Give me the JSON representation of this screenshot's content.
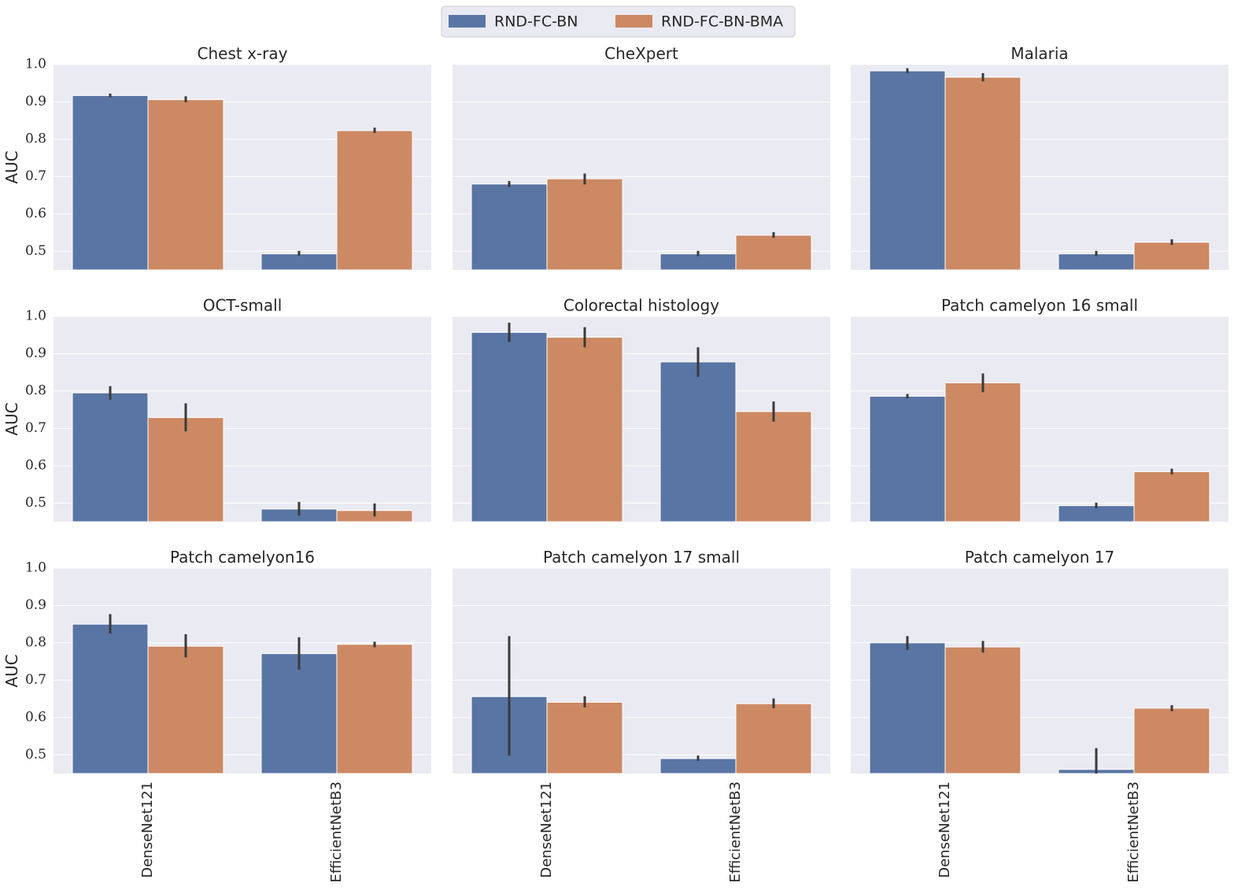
{
  "chart_data": {
    "type": "bar",
    "ylabel": "AUC",
    "ylim": [
      0.45,
      1.0
    ],
    "yticks": [
      0.5,
      0.6,
      0.7,
      0.8,
      0.9,
      1.0
    ],
    "categories": [
      "DenseNet121",
      "EfficientNetB3"
    ],
    "legend": {
      "position": "top-center",
      "entries": [
        {
          "name": "RND-FC-BN",
          "color": "#5975a4"
        },
        {
          "name": "RND-FC-BN-BMA",
          "color": "#cc8963"
        }
      ]
    },
    "colors": {
      "series_0": "#5975a4",
      "series_1": "#cc8963",
      "panel_background": "#eaeaf2",
      "error_bar": "#3a3a3a"
    },
    "panels": [
      {
        "title": "Chest x-ray",
        "series": [
          {
            "name": "RND-FC-BN",
            "values": [
              0.917,
              0.493
            ],
            "err_low": [
              0.912,
              0.488
            ],
            "err_high": [
              0.922,
              0.501
            ]
          },
          {
            "name": "RND-FC-BN-BMA",
            "values": [
              0.906,
              0.823
            ],
            "err_low": [
              0.899,
              0.817
            ],
            "err_high": [
              0.915,
              0.831
            ]
          }
        ]
      },
      {
        "title": "CheXpert",
        "series": [
          {
            "name": "RND-FC-BN",
            "values": [
              0.68,
              0.493
            ],
            "err_low": [
              0.672,
              0.487
            ],
            "err_high": [
              0.688,
              0.501
            ]
          },
          {
            "name": "RND-FC-BN-BMA",
            "values": [
              0.694,
              0.543
            ],
            "err_low": [
              0.679,
              0.536
            ],
            "err_high": [
              0.708,
              0.551
            ]
          }
        ]
      },
      {
        "title": "Malaria",
        "series": [
          {
            "name": "RND-FC-BN",
            "values": [
              0.983,
              0.493
            ],
            "err_low": [
              0.977,
              0.487
            ],
            "err_high": [
              0.99,
              0.501
            ]
          },
          {
            "name": "RND-FC-BN-BMA",
            "values": [
              0.966,
              0.524
            ],
            "err_low": [
              0.955,
              0.517
            ],
            "err_high": [
              0.977,
              0.532
            ]
          }
        ]
      },
      {
        "title": "OCT-small",
        "series": [
          {
            "name": "RND-FC-BN",
            "values": [
              0.795,
              0.484
            ],
            "err_low": [
              0.777,
              0.466
            ],
            "err_high": [
              0.813,
              0.503
            ]
          },
          {
            "name": "RND-FC-BN-BMA",
            "values": [
              0.729,
              0.48
            ],
            "err_low": [
              0.692,
              0.464
            ],
            "err_high": [
              0.767,
              0.499
            ]
          }
        ]
      },
      {
        "title": "Colorectal histology",
        "series": [
          {
            "name": "RND-FC-BN",
            "values": [
              0.957,
              0.878
            ],
            "err_low": [
              0.931,
              0.838
            ],
            "err_high": [
              0.983,
              0.917
            ]
          },
          {
            "name": "RND-FC-BN-BMA",
            "values": [
              0.944,
              0.745
            ],
            "err_low": [
              0.917,
              0.718
            ],
            "err_high": [
              0.971,
              0.772
            ]
          }
        ]
      },
      {
        "title": "Patch camelyon 16 small",
        "series": [
          {
            "name": "RND-FC-BN",
            "values": [
              0.786,
              0.493
            ],
            "err_low": [
              0.781,
              0.486
            ],
            "err_high": [
              0.792,
              0.501
            ]
          },
          {
            "name": "RND-FC-BN-BMA",
            "values": [
              0.822,
              0.584
            ],
            "err_low": [
              0.797,
              0.577
            ],
            "err_high": [
              0.847,
              0.592
            ]
          }
        ]
      },
      {
        "title": "Patch camelyon16",
        "series": [
          {
            "name": "RND-FC-BN",
            "values": [
              0.85,
              0.771
            ],
            "err_low": [
              0.825,
              0.728
            ],
            "err_high": [
              0.877,
              0.815
            ]
          },
          {
            "name": "RND-FC-BN-BMA",
            "values": [
              0.791,
              0.796
            ],
            "err_low": [
              0.761,
              0.788
            ],
            "err_high": [
              0.823,
              0.803
            ]
          }
        ]
      },
      {
        "title": "Patch camelyon 17 small",
        "series": [
          {
            "name": "RND-FC-BN",
            "values": [
              0.656,
              0.49
            ],
            "err_low": [
              0.498,
              0.484
            ],
            "err_high": [
              0.818,
              0.498
            ]
          },
          {
            "name": "RND-FC-BN-BMA",
            "values": [
              0.641,
              0.637
            ],
            "err_low": [
              0.627,
              0.625
            ],
            "err_high": [
              0.657,
              0.651
            ]
          }
        ]
      },
      {
        "title": "Patch camelyon 17",
        "series": [
          {
            "name": "RND-FC-BN",
            "values": [
              0.8,
              0.461
            ],
            "err_low": [
              0.781,
              0.45
            ],
            "err_high": [
              0.818,
              0.518
            ]
          },
          {
            "name": "RND-FC-BN-BMA",
            "values": [
              0.789,
              0.625
            ],
            "err_low": [
              0.774,
              0.617
            ],
            "err_high": [
              0.805,
              0.633
            ]
          }
        ]
      }
    ]
  }
}
